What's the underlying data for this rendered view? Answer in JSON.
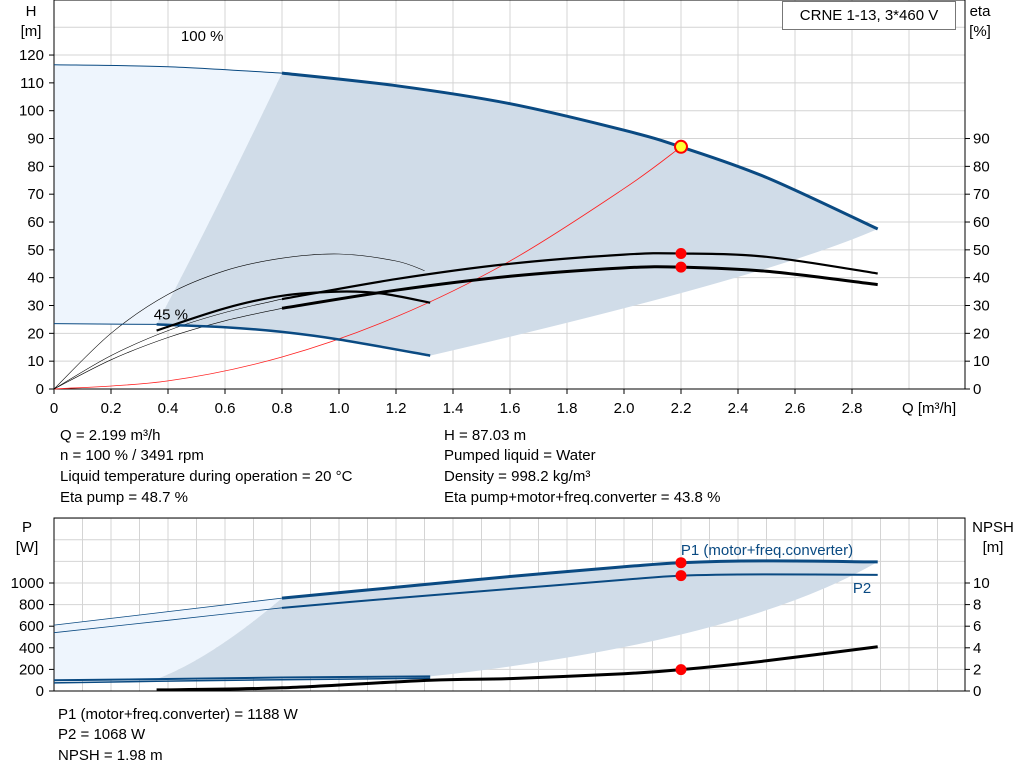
{
  "title": "CRNE 1-13, 3*460 V",
  "colors": {
    "curve_blue": "#0a4a82",
    "area_dark": "#d0dce8",
    "area_light": "#eef5fd",
    "system_curve": "#ff2020",
    "duty_point": "#ff0000",
    "duty_point_main": "#ffff33",
    "grid": "#d4d4d4"
  },
  "chart_data": [
    {
      "type": "line",
      "name_label": "head-efficiency-chart",
      "xlabel": "Q [m³/h]",
      "ylabel_left": [
        "H",
        "[m]"
      ],
      "ylabel_right": [
        "eta",
        "[%]"
      ],
      "xlim": [
        0,
        3.2
      ],
      "ylim": [
        0,
        139
      ],
      "xticks": [
        "0",
        "0.2",
        "0.4",
        "0.6",
        "0.8",
        "1.0",
        "1.2",
        "1.4",
        "1.6",
        "1.8",
        "2.0",
        "2.2",
        "2.4",
        "2.6",
        "2.8"
      ],
      "yticks_left": [
        "0",
        "10",
        "20",
        "30",
        "40",
        "50",
        "60",
        "70",
        "80",
        "90",
        "100",
        "110",
        "120"
      ],
      "yticks_right": [
        "0",
        "10",
        "20",
        "30",
        "40",
        "50",
        "60",
        "70",
        "80",
        "90"
      ],
      "grid": true,
      "annotations": [
        "100 %",
        "45 %"
      ],
      "series": {
        "head_100": [
          [
            0,
            116.5
          ],
          [
            0.4,
            115.8
          ],
          [
            0.8,
            113.5
          ],
          [
            1.2,
            109
          ],
          [
            1.6,
            102.5
          ],
          [
            2.0,
            93
          ],
          [
            2.2,
            87
          ],
          [
            2.5,
            76
          ],
          [
            2.89,
            57.5
          ]
        ],
        "head_45": [
          [
            0,
            23.5
          ],
          [
            0.36,
            23.2
          ],
          [
            0.6,
            22.2
          ],
          [
            0.8,
            20.5
          ],
          [
            1.0,
            17.8
          ],
          [
            1.32,
            12
          ]
        ],
        "eta_pump_100": [
          [
            0.8,
            32.3
          ],
          [
            1.2,
            39.5
          ],
          [
            1.6,
            45
          ],
          [
            2.0,
            48.3
          ],
          [
            2.2,
            48.7
          ],
          [
            2.5,
            47.5
          ],
          [
            2.89,
            41.5
          ]
        ],
        "eta_total_100": [
          [
            0.8,
            29
          ],
          [
            1.2,
            35.5
          ],
          [
            1.6,
            40.5
          ],
          [
            2.0,
            43.5
          ],
          [
            2.2,
            43.8
          ],
          [
            2.5,
            42.3
          ],
          [
            2.89,
            37.5
          ]
        ],
        "eta_pump_45": [
          [
            0.36,
            21
          ],
          [
            0.6,
            29
          ],
          [
            0.8,
            33.5
          ],
          [
            1.0,
            35
          ],
          [
            1.15,
            34.3
          ],
          [
            1.32,
            31
          ]
        ],
        "eta_thin_100": [
          [
            0,
            0
          ],
          [
            0.2,
            20
          ],
          [
            0.4,
            34
          ],
          [
            0.6,
            42.5
          ],
          [
            0.8,
            47
          ],
          [
            1.0,
            48.5
          ],
          [
            1.2,
            46
          ],
          [
            1.3,
            42.5
          ]
        ],
        "eta_thin_a": [
          [
            0,
            0
          ],
          [
            0.2,
            12
          ],
          [
            0.4,
            21
          ],
          [
            0.6,
            27.5
          ],
          [
            0.8,
            32.3
          ]
        ],
        "eta_thin_b": [
          [
            0,
            0
          ],
          [
            0.2,
            10.5
          ],
          [
            0.4,
            18.5
          ],
          [
            0.6,
            24.5
          ],
          [
            0.8,
            29
          ]
        ],
        "system_curve": [
          [
            0,
            0
          ],
          [
            0.4,
            2.9
          ],
          [
            0.8,
            11.5
          ],
          [
            1.2,
            25.9
          ],
          [
            1.6,
            46
          ],
          [
            2.0,
            72
          ],
          [
            2.2,
            87
          ]
        ]
      },
      "duty_points": [
        {
          "q": 2.2,
          "h": 87.03
        },
        {
          "q": 2.2,
          "eta": 48.7
        },
        {
          "q": 2.2,
          "eta": 43.8
        }
      ]
    },
    {
      "type": "line",
      "name_label": "power-npsh-chart",
      "ylabel_left": [
        "P",
        "[W]"
      ],
      "ylabel_right": [
        "NPSH",
        "[m]"
      ],
      "xlim": [
        0,
        3.2
      ],
      "ylim": [
        0,
        1600
      ],
      "yticks_left": [
        "0",
        "200",
        "400",
        "600",
        "800",
        "1000"
      ],
      "yticks_right": [
        "0",
        "2",
        "4",
        "6",
        "8",
        "10"
      ],
      "grid": true,
      "labels": [
        "P1 (motor+freq.converter)",
        "P2"
      ],
      "series": {
        "p1_100": [
          [
            0,
            610
          ],
          [
            0.4,
            735
          ],
          [
            0.8,
            860
          ],
          [
            1.2,
            960
          ],
          [
            1.6,
            1060
          ],
          [
            2.0,
            1150
          ],
          [
            2.2,
            1188
          ],
          [
            2.5,
            1205
          ],
          [
            2.89,
            1195
          ]
        ],
        "p2_100": [
          [
            0,
            540
          ],
          [
            0.4,
            655
          ],
          [
            0.8,
            770
          ],
          [
            1.2,
            860
          ],
          [
            1.6,
            945
          ],
          [
            2.0,
            1030
          ],
          [
            2.2,
            1068
          ],
          [
            2.5,
            1080
          ],
          [
            2.89,
            1075
          ]
        ],
        "p1_45": [
          [
            0,
            100
          ],
          [
            0.36,
            110
          ],
          [
            0.8,
            125
          ],
          [
            1.32,
            135
          ]
        ],
        "p2_45": [
          [
            0,
            75
          ],
          [
            0.36,
            90
          ],
          [
            0.8,
            105
          ],
          [
            1.32,
            118
          ]
        ],
        "npsh": [
          [
            0.36,
            0.1
          ],
          [
            0.8,
            0.3
          ],
          [
            1.32,
            1.0
          ],
          [
            1.6,
            1.15
          ],
          [
            2.0,
            1.6
          ],
          [
            2.2,
            1.98
          ],
          [
            2.5,
            2.8
          ],
          [
            2.89,
            4.1
          ]
        ]
      },
      "duty_points": [
        {
          "q": 2.2,
          "p": 1188
        },
        {
          "q": 2.2,
          "p": 1068
        },
        {
          "q": 2.2,
          "npsh": 1.98
        }
      ]
    }
  ],
  "info_top_left": [
    "Q = 2.199 m³/h",
    "n = 100 % / 3491 rpm",
    "Liquid temperature during operation = 20 °C",
    "Eta pump = 48.7 %"
  ],
  "info_top_right": [
    "H = 87.03 m",
    "Pumped liquid = Water",
    "Density = 998.2 kg/m³",
    "Eta pump+motor+freq.converter = 43.8 %"
  ],
  "info_bottom": [
    "P1 (motor+freq.converter) = 1188 W",
    "P2 = 1068 W",
    "NPSH = 1.98 m"
  ]
}
